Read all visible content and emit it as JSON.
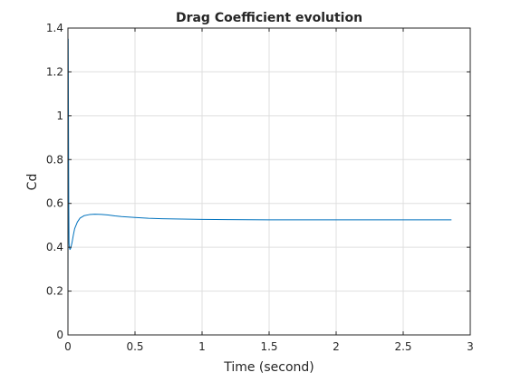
{
  "colors": {
    "series": "#0072bd",
    "grid": "#dfdfdf",
    "axis": "#262626",
    "background": "#ffffff"
  },
  "chart_data": {
    "type": "line",
    "title": "Drag Coefficient evolution",
    "xlabel": "Time (second)",
    "ylabel": "Cd",
    "xlim": [
      0,
      3
    ],
    "ylim": [
      0,
      1.4
    ],
    "xticks": [
      0,
      0.5,
      1,
      1.5,
      2,
      2.5,
      3
    ],
    "xtick_labels": [
      "0",
      "0.5",
      "1",
      "1.5",
      "2",
      "2.5",
      "3"
    ],
    "yticks": [
      0,
      0.2,
      0.4,
      0.6,
      0.8,
      1,
      1.2,
      1.4
    ],
    "ytick_labels": [
      "0",
      "0.2",
      "0.4",
      "0.6",
      "0.8",
      "1",
      "1.2",
      "1.4"
    ],
    "grid": true,
    "series": [
      {
        "x": [
          0,
          0.002,
          0.004,
          0.006,
          0.008,
          0.01,
          0.015,
          0.02,
          0.03,
          0.04,
          0.05,
          0.07,
          0.09,
          0.12,
          0.16,
          0.2,
          0.25,
          0.3,
          0.35,
          0.4,
          0.5,
          0.6,
          0.7,
          0.8,
          0.9,
          1.0,
          1.2,
          1.5,
          2.0,
          2.5,
          2.86
        ],
        "y": [
          0,
          1.35,
          0.95,
          0.6,
          0.42,
          0.4,
          0.39,
          0.395,
          0.42,
          0.455,
          0.485,
          0.515,
          0.533,
          0.544,
          0.549,
          0.551,
          0.55,
          0.547,
          0.543,
          0.54,
          0.536,
          0.532,
          0.53,
          0.529,
          0.528,
          0.527,
          0.526,
          0.525,
          0.525,
          0.525,
          0.525
        ]
      }
    ]
  }
}
